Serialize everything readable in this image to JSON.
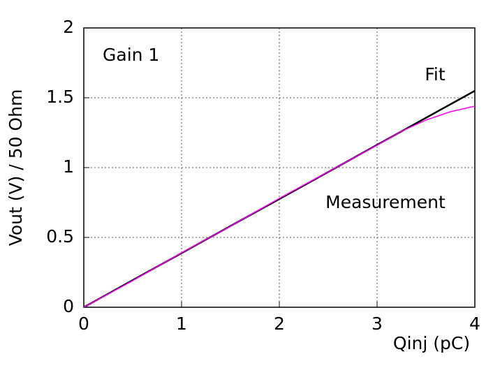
{
  "chart_data": {
    "type": "line",
    "annotation": "Gain 1",
    "x_label": "Qinj (pC)",
    "y_label": "Vout (V) / 50 Ohm",
    "xlim": [
      0,
      4
    ],
    "xticks": [
      0,
      1,
      2,
      3,
      4
    ],
    "ylim": [
      0,
      2
    ],
    "yticks": [
      0,
      0.5,
      1,
      1.5,
      2
    ],
    "grid": true,
    "series": [
      {
        "name": "Fit",
        "color": "#000000",
        "x": [
          0,
          4
        ],
        "values": [
          0,
          1.55
        ]
      },
      {
        "name": "Measurement",
        "color": "#ff00ff",
        "x": [
          0,
          0.5,
          1,
          1.5,
          2,
          2.5,
          3,
          3.25,
          3.5,
          3.75,
          4
        ],
        "values": [
          0,
          0.19,
          0.39,
          0.58,
          0.78,
          0.97,
          1.16,
          1.26,
          1.34,
          1.4,
          1.44
        ]
      }
    ]
  }
}
